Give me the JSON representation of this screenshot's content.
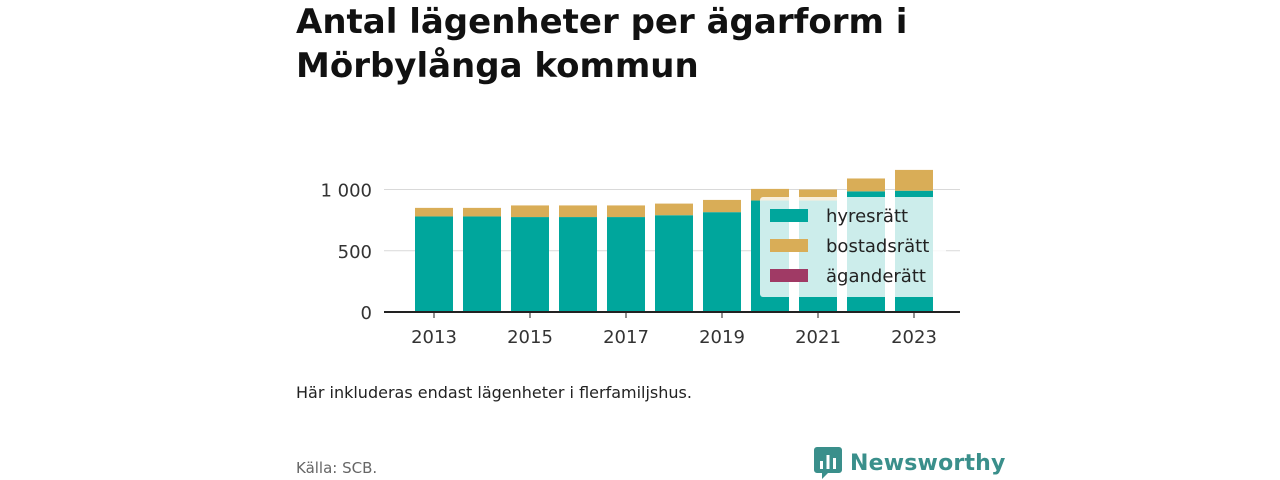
{
  "chart_data": {
    "type": "bar",
    "stacked": true,
    "title": "Antal lägenheter per ägarform i Mörbylånga kommun",
    "note": "Här inkluderas endast lägenheter i flerfamiljshus.",
    "source": "Källa: SCB.",
    "x": [
      2013,
      2014,
      2015,
      2016,
      2017,
      2018,
      2019,
      2020,
      2021,
      2022,
      2023
    ],
    "x_tick_labels": [
      "2013",
      "2015",
      "2017",
      "2019",
      "2021",
      "2023"
    ],
    "y_ticks": [
      0,
      500,
      1000
    ],
    "y_tick_labels": [
      "0",
      "500",
      "1 000"
    ],
    "ylim": [
      0,
      1200
    ],
    "grid": true,
    "legend_position": "right",
    "series": [
      {
        "name": "hyresrätt",
        "color": "#00a69c",
        "values": [
          780,
          780,
          775,
          775,
          775,
          790,
          815,
          910,
          910,
          985,
          990
        ]
      },
      {
        "name": "bostadsrätt",
        "color": "#d9ad57",
        "values": [
          70,
          70,
          95,
          95,
          95,
          95,
          100,
          95,
          90,
          105,
          170
        ]
      },
      {
        "name": "äganderätt",
        "color": "#a03a65",
        "values": [
          0,
          0,
          0,
          0,
          0,
          0,
          0,
          0,
          0,
          0,
          0
        ]
      }
    ]
  },
  "brand": {
    "name": "Newsworthy",
    "color": "#3a8f8b",
    "icon": "bar-chart-speech-bubble-icon"
  }
}
